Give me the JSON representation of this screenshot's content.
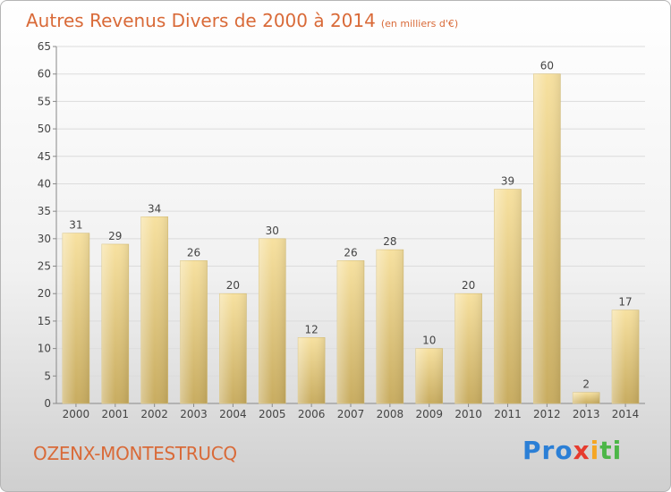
{
  "header": {
    "title": "Autres Revenus Divers de 2000 à 2014",
    "unit": "(en milliers d'€)"
  },
  "footer": {
    "place": "OZENX-MONTESTRUCQ",
    "logo": "Proxiti"
  },
  "colors": {
    "accent": "#d96a38",
    "bar_light": "#f5dc98",
    "bar_dark": "#c9ad62"
  },
  "chart_data": {
    "type": "bar",
    "categories": [
      "2000",
      "2001",
      "2002",
      "2003",
      "2004",
      "2005",
      "2006",
      "2007",
      "2008",
      "2009",
      "2010",
      "2011",
      "2012",
      "2013",
      "2014"
    ],
    "values": [
      31,
      29,
      34,
      26,
      20,
      30,
      12,
      26,
      28,
      10,
      20,
      39,
      60,
      2,
      17
    ],
    "title": "Autres Revenus Divers de 2000 à 2014",
    "subtitle": "(en milliers d'€)",
    "xlabel": "",
    "ylabel": "",
    "ylim": [
      0,
      65
    ],
    "yticks": [
      0,
      5,
      10,
      15,
      20,
      25,
      30,
      35,
      40,
      45,
      50,
      55,
      60,
      65
    ],
    "grid": true,
    "data_labels": true
  }
}
